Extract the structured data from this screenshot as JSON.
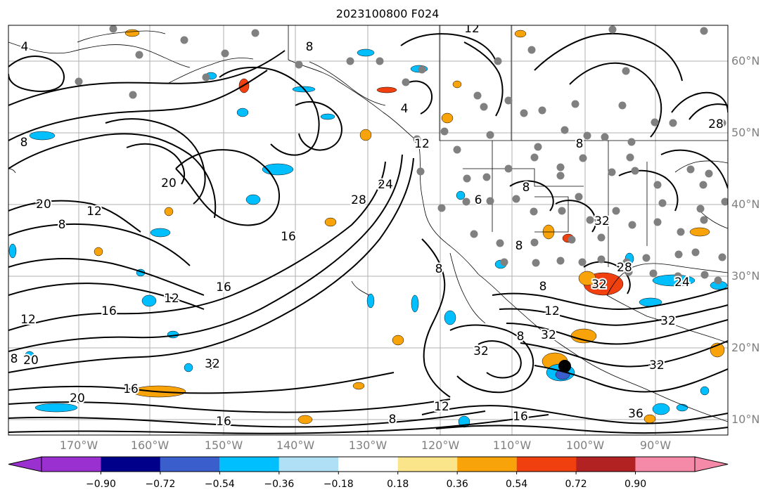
{
  "title": "2023100800 F024",
  "lat_labels": [
    "60°N",
    "50°N",
    "40°N",
    "30°N",
    "20°N",
    "10°N"
  ],
  "lon_labels": [
    "170°W",
    "160°W",
    "150°W",
    "140°W",
    "130°W",
    "120°W",
    "110°W",
    "100°W",
    "90°W"
  ],
  "colorbar": {
    "ticks": [
      "−0.90",
      "−0.72",
      "−0.54",
      "−0.36",
      "−0.18",
      "0.18",
      "0.36",
      "0.54",
      "0.72",
      "0.90"
    ],
    "colors": [
      "#9b30d0",
      "#00008b",
      "#3a5fcd",
      "#00bfff",
      "#b0e0f5",
      "#ffffff",
      "#fbe58a",
      "#f9a30a",
      "#f04010",
      "#b22222",
      "#f58aa8"
    ]
  },
  "contour_labels": [
    "12",
    "8",
    "8",
    "4",
    "20",
    "20",
    "12",
    "8",
    "16",
    "16",
    "12",
    "8",
    "20",
    "20",
    "16",
    "12",
    "16",
    "8",
    "16",
    "8",
    "12",
    "8",
    "12",
    "8",
    "32",
    "32",
    "28",
    "32",
    "24",
    "32",
    "32",
    "36",
    "8",
    "24",
    "16",
    "8",
    "12",
    "4",
    "28",
    "32",
    "28",
    "8",
    "32",
    "8",
    "6"
  ],
  "colors": {
    "contour": "#000000",
    "coast": "#000000",
    "grid": "#b0b0b0",
    "station": "#808080",
    "marker": "#000000"
  }
}
